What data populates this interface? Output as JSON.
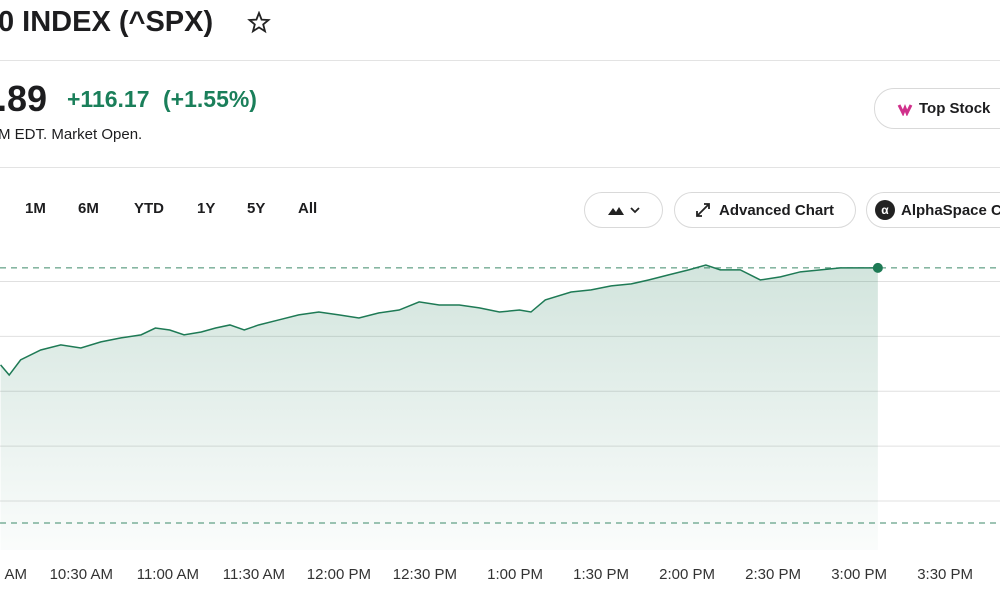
{
  "header": {
    "title": "0 INDEX (^SPX)",
    "price": ".89",
    "change": "+116.17",
    "change_percent": "(+1.55%)",
    "status": "M EDT. Market Open.",
    "top_stocks_button": "Top Stock"
  },
  "range_tabs": [
    "1M",
    "6M",
    "YTD",
    "1Y",
    "5Y",
    "All"
  ],
  "toolbar": {
    "advanced_chart": "Advanced Chart",
    "alphaspace": "AlphaSpace C"
  },
  "chart_data": {
    "type": "area",
    "color": "#1e7a55",
    "x": [
      603,
      606,
      610,
      617,
      624,
      631,
      638,
      645,
      652,
      657,
      662,
      667,
      673,
      678,
      683,
      688,
      693,
      700,
      707,
      714,
      721,
      728,
      735,
      742,
      749,
      756,
      763,
      770,
      777,
      784,
      788,
      793,
      802,
      809,
      816,
      823,
      829,
      836,
      843,
      849,
      854,
      861,
      868,
      875,
      882,
      889,
      896,
      903,
      909
    ],
    "values": [
      7567.0,
      7562.4,
      7569.3,
      7573.8,
      7576.1,
      7574.7,
      7577.5,
      7579.3,
      7580.7,
      7583.8,
      7582.9,
      7580.7,
      7582.0,
      7583.8,
      7585.2,
      7582.9,
      7585.2,
      7587.5,
      7589.8,
      7591.1,
      7589.8,
      7588.4,
      7590.7,
      7592.0,
      7595.7,
      7594.3,
      7594.3,
      7593.0,
      7591.1,
      7592.0,
      7591.1,
      7596.6,
      7600.2,
      7601.2,
      7603.0,
      7603.9,
      7605.7,
      7608.0,
      7610.3,
      7612.5,
      7610.3,
      7610.3,
      7605.7,
      7607.1,
      7609.4,
      7610.3,
      7611.2,
      7611.2,
      7611.2
    ],
    "xlim": [
      602.8,
      951.6
    ],
    "ylim": [
      7482.7,
      7623.9
    ],
    "xticks": [
      {
        "value": 600,
        "label": "AM"
      },
      {
        "value": 630,
        "label": "10:30 AM"
      },
      {
        "value": 660,
        "label": "11:00 AM"
      },
      {
        "value": 690,
        "label": "11:30 AM"
      },
      {
        "value": 720,
        "label": "12:00 PM"
      },
      {
        "value": 750,
        "label": "12:30 PM"
      },
      {
        "value": 780,
        "label": "1:00 PM"
      },
      {
        "value": 810,
        "label": "1:30 PM"
      },
      {
        "value": 840,
        "label": "2:00 PM"
      },
      {
        "value": 870,
        "label": "2:30 PM"
      },
      {
        "value": 900,
        "label": "3:00 PM"
      },
      {
        "value": 930,
        "label": "3:30 PM"
      }
    ],
    "gridlines": [
      7505,
      7530,
      7555,
      7580,
      7605
    ],
    "reference_lines": [
      7611.2,
      7495
    ]
  }
}
